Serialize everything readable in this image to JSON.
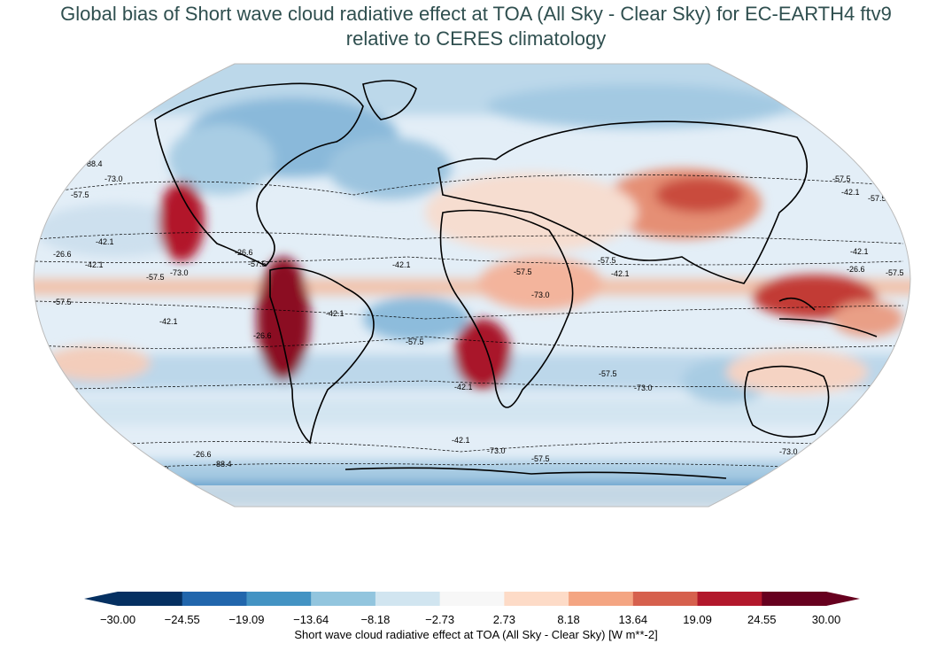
{
  "title": {
    "line1": "Global bias of Short wave cloud radiative effect at TOA (All Sky - Clear Sky) for EC-EARTH4 ftv9",
    "line2": "relative to CERES climatology"
  },
  "map": {
    "projection": "Robinson",
    "colormap": "RdBu_r",
    "contour_labels": [
      "-88.4",
      "-73.0",
      "-57.5",
      "-42.1",
      "-26.6",
      "-42.1",
      "-57.5",
      "-73.0",
      "-57.5",
      "-42.1",
      "-26.6",
      "-42.1",
      "-57.5",
      "-26.6",
      "-57.5",
      "-42.1",
      "-73.0",
      "-57.5",
      "-42.1",
      "-73.0",
      "-57.5",
      "-42.1",
      "-26.6",
      "-88.4",
      "-73.0",
      "-57.5",
      "-42.1",
      "-57.5",
      "-42.1",
      "-57.5",
      "-26.6",
      "-57.5",
      "-73.0",
      "-57.5",
      "-42.1",
      "-73.0"
    ]
  },
  "colorbar": {
    "ticks": [
      "−30.00",
      "−24.55",
      "−19.09",
      "−13.64",
      "−8.18",
      "−2.73",
      "2.73",
      "8.18",
      "13.64",
      "19.09",
      "24.55",
      "30.00"
    ],
    "colors": [
      "#053061",
      "#2166ac",
      "#4393c3",
      "#92c5de",
      "#d1e5f0",
      "#f7f7f7",
      "#fddbc7",
      "#f4a582",
      "#d6604d",
      "#b2182b",
      "#67001f"
    ],
    "label": "Short wave cloud radiative effect at TOA (All Sky - Clear Sky) [W m**-2]"
  }
}
